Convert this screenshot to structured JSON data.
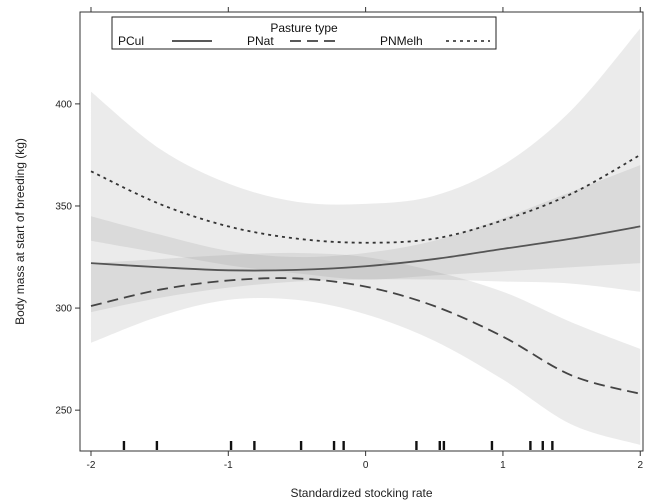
{
  "chart_data": {
    "type": "line",
    "xlabel": "Standardized stocking rate",
    "ylabel": "Body mass at start of breeding (kg)",
    "xlim": [
      -2.08,
      2.02
    ],
    "ylim": [
      230,
      445
    ],
    "x_ticks": [
      -2,
      -1,
      0,
      1,
      2
    ],
    "y_ticks": [
      250,
      300,
      350,
      400
    ],
    "x_tick_labels": [
      "-2",
      "-1",
      "0",
      "1",
      "2"
    ],
    "y_tick_labels": [
      "250",
      "300",
      "350",
      "400"
    ],
    "grid": false,
    "legend": {
      "title": "Pasture type",
      "placement": "top",
      "entries": [
        {
          "label": "PCul",
          "style": "solid"
        },
        {
          "label": "PNat",
          "style": "dashed"
        },
        {
          "label": "PNMelh",
          "style": "dotted"
        }
      ]
    },
    "series": [
      {
        "name": "PCul",
        "style": "solid",
        "color": "#555555",
        "x": [
          -2,
          -1.5,
          -1,
          -0.5,
          0,
          0.5,
          1,
          1.5,
          2
        ],
        "y": [
          322,
          320,
          318.5,
          318.7,
          320.5,
          324,
          329,
          334,
          340
        ],
        "lower": [
          298,
          305,
          310,
          313,
          314,
          314,
          313,
          312,
          308
        ],
        "upper": [
          345,
          336,
          328,
          325,
          327,
          333,
          344,
          357,
          370
        ]
      },
      {
        "name": "PNat",
        "style": "dashed",
        "color": "#444444",
        "x": [
          -2,
          -1.5,
          -1,
          -0.5,
          0,
          0.5,
          1,
          1.5,
          2
        ],
        "y": [
          301,
          309,
          313.5,
          314.5,
          310.5,
          301,
          286,
          267,
          258
        ],
        "lower": [
          283,
          296,
          304,
          304,
          297,
          284,
          265,
          243,
          233
        ],
        "upper": [
          322,
          324,
          326,
          327,
          325,
          318,
          308,
          293,
          280
        ]
      },
      {
        "name": "PNMelh",
        "style": "dotted",
        "color": "#333333",
        "x": [
          -2,
          -1.5,
          -1,
          -0.5,
          0,
          0.5,
          1,
          1.5,
          2
        ],
        "y": [
          367,
          351,
          340,
          334,
          332,
          334,
          343,
          356,
          375
        ],
        "lower": [
          333,
          327,
          321,
          317,
          314,
          316,
          318,
          320,
          322
        ],
        "upper": [
          406,
          378,
          361,
          352,
          351,
          355,
          370,
          397,
          437
        ]
      }
    ],
    "rug_x": [
      -1.76,
      -1.52,
      -0.98,
      -0.81,
      -0.47,
      -0.23,
      -0.16,
      0.37,
      0.54,
      0.57,
      0.92,
      1.2,
      1.29,
      1.36
    ]
  }
}
